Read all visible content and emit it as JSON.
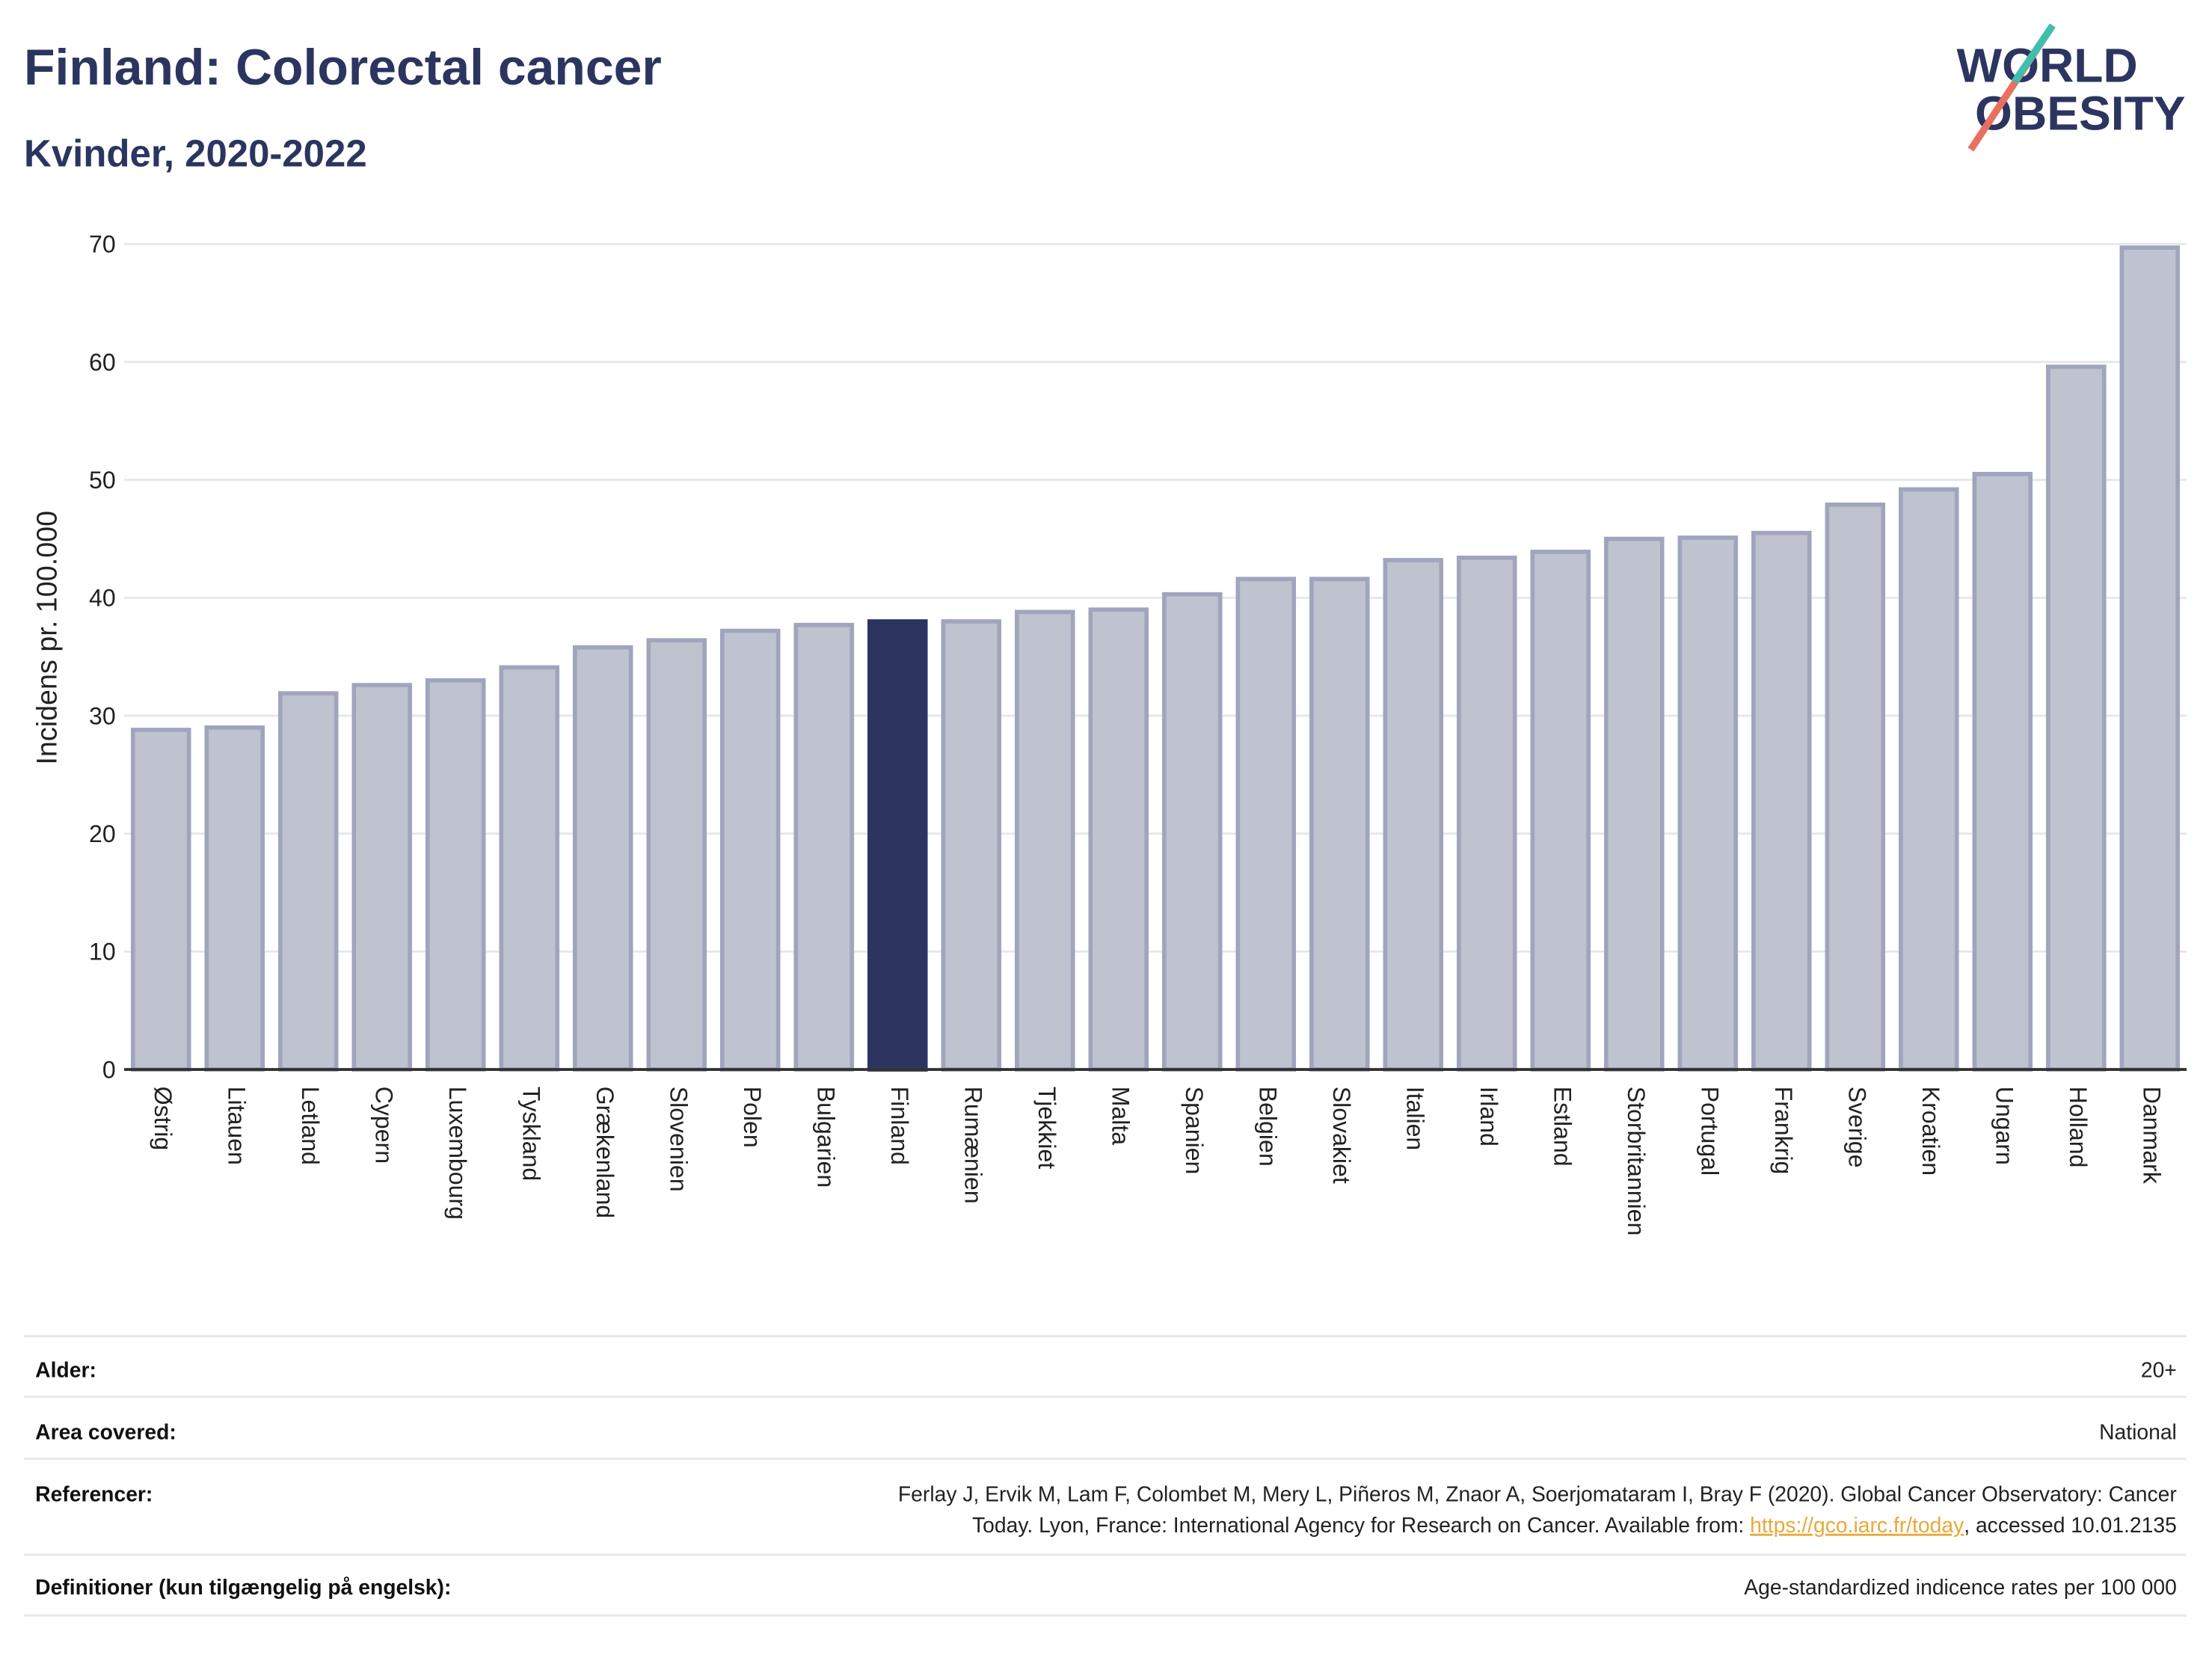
{
  "chart_data": {
    "type": "bar",
    "title": "Finland: Colorectal cancer",
    "subtitle": "Kvinder, 2020-2022",
    "ylabel": "Incidens pr. 100.000",
    "categories": [
      "Østrig",
      "Litauen",
      "Letland",
      "Cypern",
      "Luxembourg",
      "Tyskland",
      "Grækenland",
      "Slovenien",
      "Polen",
      "Bulgarien",
      "Finland",
      "Rumænien",
      "Tjekkiet",
      "Malta",
      "Spanien",
      "Belgien",
      "Slovakiet",
      "Italien",
      "Irland",
      "Estland",
      "Storbritannien",
      "Portugal",
      "Frankrig",
      "Sverige",
      "Kroatien",
      "Ungarn",
      "Holland",
      "Danmark"
    ],
    "values": [
      28.8,
      29.0,
      31.9,
      32.6,
      33.0,
      34.1,
      35.8,
      36.4,
      37.2,
      37.7,
      38.0,
      38.0,
      38.8,
      39.0,
      40.3,
      41.6,
      41.6,
      43.2,
      43.4,
      43.9,
      45.0,
      45.1,
      45.5,
      47.9,
      49.2,
      50.5,
      59.6,
      69.7
    ],
    "colors": [
      "#bfc2cf",
      "#bfc2cf",
      "#bfc2cf",
      "#bfc2cf",
      "#bfc2cf",
      "#bfc2cf",
      "#bfc2cf",
      "#bfc2cf",
      "#bfc2cf",
      "#bfc2cf",
      "#2b3560",
      "#bfc2cf",
      "#bfc2cf",
      "#bfc2cf",
      "#bfc2cf",
      "#bfc2cf",
      "#bfc2cf",
      "#bfc2cf",
      "#bfc2cf",
      "#bfc2cf",
      "#bfc2cf",
      "#bfc2cf",
      "#bfc2cf",
      "#bfc2cf",
      "#bfc2cf",
      "#bfc2cf",
      "#bfc2cf",
      "#bfc2cf"
    ],
    "ylim": [
      0,
      70
    ],
    "yticks": [
      0,
      10,
      20,
      30,
      40,
      50,
      60,
      70
    ],
    "grid": true
  },
  "logo": {
    "line1": "WORLD",
    "line2": "OBESITY"
  },
  "footer": {
    "rows": [
      {
        "label": "Alder:",
        "value": "20+"
      },
      {
        "label": "Area covered:",
        "value": "National"
      },
      {
        "label": "Referencer:",
        "value": [
          "Ferlay J, Ervik M, Lam F, Colombet M, Mery L, Piñeros M, Znaor A, Soerjomataram I, Bray F (2020). Global Cancer Observatory: Cancer",
          "Today. Lyon, France: International Agency for Research on Cancer. Available from: ",
          "https://gco.iarc.fr/today",
          ", accessed 10.01.2135"
        ]
      },
      {
        "label": "Definitioner (kun tilgængelig på engelsk):",
        "value": "Age-standardized indicence rates per 100 000"
      }
    ]
  }
}
